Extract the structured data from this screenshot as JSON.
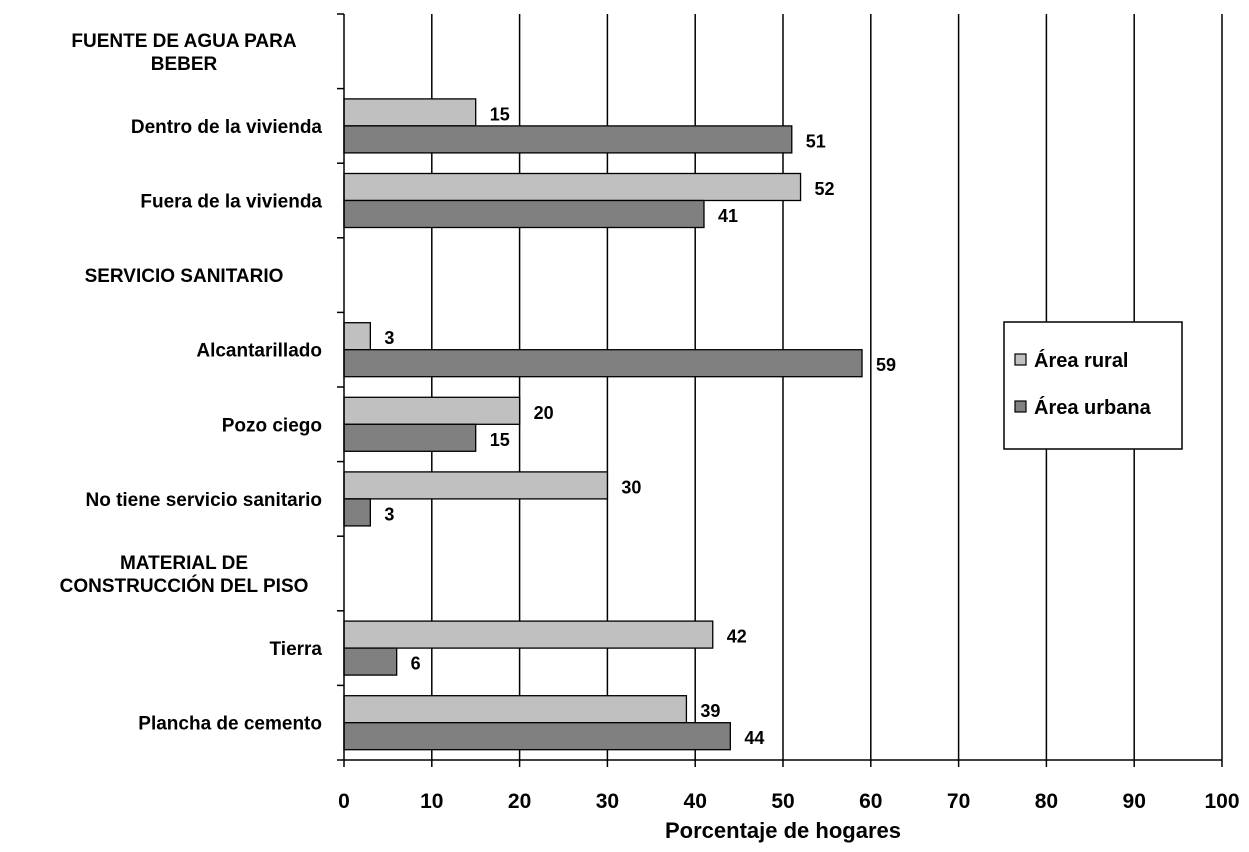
{
  "chart_data": {
    "type": "bar",
    "orientation": "horizontal",
    "title": "",
    "xlabel": "Porcentaje de hogares",
    "ylabel": "",
    "xlim": [
      0,
      100
    ],
    "x_ticks": [
      "0",
      "10",
      "20",
      "30",
      "40",
      "50",
      "60",
      "70",
      "80",
      "90",
      "100"
    ],
    "grid": "vertical",
    "legend_position": "right",
    "categories": [
      {
        "label": "FUENTE DE AGUA PARA BEBER",
        "lines": [
          "FUENTE DE AGUA PARA",
          "BEBER"
        ],
        "header": true
      },
      {
        "label": "Dentro de la vivienda",
        "lines": [
          "Dentro de la vivienda"
        ],
        "header": false
      },
      {
        "label": "Fuera de la vivienda",
        "lines": [
          "Fuera de la vivienda"
        ],
        "header": false
      },
      {
        "label": "SERVICIO SANITARIO",
        "lines": [
          "SERVICIO SANITARIO"
        ],
        "header": true
      },
      {
        "label": "Alcantarillado",
        "lines": [
          "Alcantarillado"
        ],
        "header": false
      },
      {
        "label": "Pozo ciego",
        "lines": [
          "Pozo ciego"
        ],
        "header": false
      },
      {
        "label": "No tiene servicio sanitario",
        "lines": [
          "No tiene servicio sanitario"
        ],
        "header": false
      },
      {
        "label": "MATERIAL DE CONSTRUCCIÓN DEL PISO",
        "lines": [
          "MATERIAL DE",
          "CONSTRUCCIÓN DEL PISO"
        ],
        "header": true
      },
      {
        "label": "Tierra",
        "lines": [
          "Tierra"
        ],
        "header": false
      },
      {
        "label": "Plancha de cemento",
        "lines": [
          "Plancha de cemento"
        ],
        "header": false
      }
    ],
    "series": [
      {
        "name": "Área rural",
        "color": "#c0c0c0",
        "values": [
          null,
          15,
          52,
          null,
          3,
          20,
          30,
          null,
          42,
          39
        ]
      },
      {
        "name": "Área urbana",
        "color": "#808080",
        "values": [
          null,
          51,
          41,
          null,
          59,
          15,
          3,
          null,
          6,
          44
        ]
      }
    ]
  }
}
